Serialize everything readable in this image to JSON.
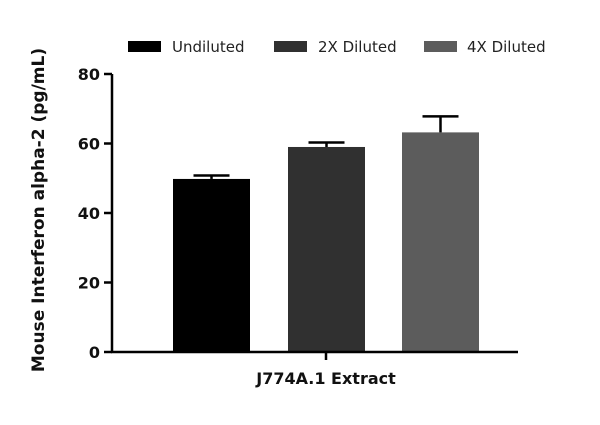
{
  "chart_data": {
    "type": "bar",
    "title": "",
    "xlabel": "",
    "ylabel": "Mouse Interferon alpha-2 (pg/mL)",
    "ylim": [
      0,
      80
    ],
    "yticks": [
      0,
      20,
      40,
      60,
      80
    ],
    "grid": false,
    "legend_position": "top",
    "categories": [
      "J774A.1 Extract"
    ],
    "series": [
      {
        "name": "Undiluted",
        "values": [
          49.8
        ],
        "error": [
          1.0
        ],
        "color": "#000000"
      },
      {
        "name": "2X Diluted",
        "values": [
          59.0
        ],
        "error": [
          1.3
        ],
        "color": "#303030"
      },
      {
        "name": "4X Diluted",
        "values": [
          63.2
        ],
        "error": [
          4.6
        ],
        "color": "#5c5c5c"
      }
    ]
  }
}
